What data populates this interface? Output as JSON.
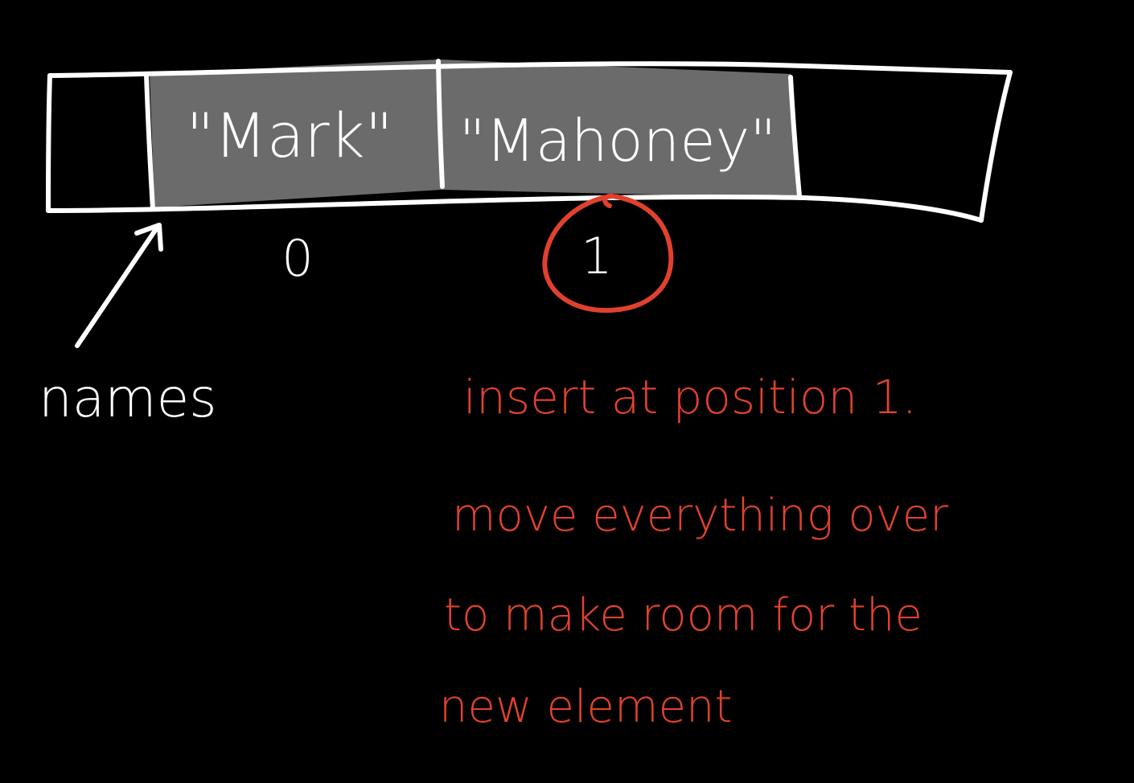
{
  "array": {
    "name": "names",
    "cells": [
      {
        "value": "",
        "filled": false
      },
      {
        "value": "\"Mark\"",
        "filled": true
      },
      {
        "value": "\"Mahoney\"",
        "filled": true
      },
      {
        "value": "",
        "filled": false
      }
    ],
    "indices": [
      "0",
      "1"
    ],
    "highlighted_index": "1"
  },
  "annotation": {
    "lines": [
      "insert at position 1.",
      "move everything over",
      "to make room for the",
      "new element"
    ]
  },
  "colors": {
    "background": "#000000",
    "ink": "#ffffff",
    "cell_fill": "#6b6b6b",
    "annotation": "#e0412f"
  }
}
